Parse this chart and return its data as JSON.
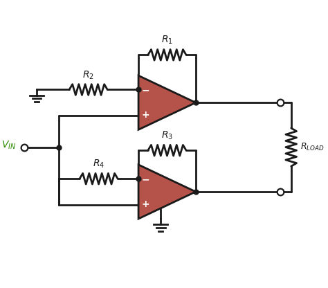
{
  "bg_color": "#ffffff",
  "line_color": "#1a1a1a",
  "line_width": 2.0,
  "op_amp_fill": "#b5534a",
  "op_amp_edge": "#1a1a1a",
  "vin_color": "#2e8b00",
  "label_color": "#1a1a1a",
  "fig_width": 4.74,
  "fig_height": 4.16,
  "dpi": 100,
  "xlim": [
    0,
    10
  ],
  "ylim": [
    0,
    8.8
  ]
}
